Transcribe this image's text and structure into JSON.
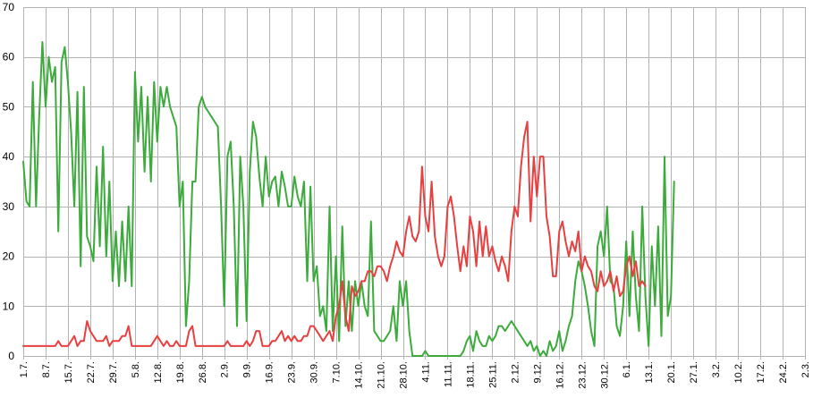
{
  "chart_data": {
    "type": "line",
    "ylim": [
      0,
      70
    ],
    "y_ticks": [
      0,
      10,
      20,
      30,
      40,
      50,
      60,
      70
    ],
    "grid": "both",
    "legend": "none",
    "x_tick_labels": [
      "1.7.",
      "8.7.",
      "15.7.",
      "22.7.",
      "29.7.",
      "5.8.",
      "12.8.",
      "19.8.",
      "26.8.",
      "2.9.",
      "9.9.",
      "16.9.",
      "23.9.",
      "30.9.",
      "7.10.",
      "14.10.",
      "21.10.",
      "28.10.",
      "4.11.",
      "11.11.",
      "18.11.",
      "25.11.",
      "2.12.",
      "9.12.",
      "16.12.",
      "23.12.",
      "30.12.",
      "6.1.",
      "13.1.",
      "20.1.",
      "27.1.",
      "3.2.",
      "10.2.",
      "17.2.",
      "24.2.",
      "2.3."
    ],
    "days_per_tick": 7,
    "series": [
      {
        "color": "#3cab3c",
        "values": [
          39,
          31,
          30,
          55,
          30,
          48,
          63,
          50,
          60,
          55,
          58,
          25,
          59,
          62,
          55,
          45,
          30,
          53,
          18,
          54,
          24,
          22,
          19,
          38,
          22,
          42,
          20,
          35,
          15,
          25,
          14,
          27,
          15,
          30,
          14,
          57,
          43,
          54,
          37,
          52,
          35,
          55,
          43,
          54,
          50,
          54,
          50,
          48,
          46,
          30,
          35,
          6,
          15,
          35,
          35,
          50,
          52,
          50,
          49,
          48,
          47,
          46,
          30,
          10,
          40,
          43,
          30,
          6,
          40,
          30,
          7,
          37,
          47,
          44,
          36,
          30,
          40,
          32,
          35,
          36,
          30,
          37,
          34,
          30,
          30,
          36,
          32,
          30,
          35,
          15,
          34,
          15,
          18,
          8,
          10,
          5,
          30,
          5,
          20,
          3,
          26,
          6,
          15,
          5,
          15,
          10,
          15,
          10,
          8,
          27,
          5,
          4,
          3,
          3,
          4,
          5,
          10,
          3,
          15,
          10,
          15,
          5,
          0,
          0,
          0,
          0,
          1,
          0,
          0,
          0,
          0,
          0,
          0,
          0,
          0,
          0,
          0,
          0,
          1,
          3,
          4,
          1,
          5,
          3,
          2,
          2,
          4,
          3,
          4,
          6,
          6,
          5,
          6,
          7,
          6,
          5,
          4,
          3,
          2,
          3,
          1,
          2,
          0,
          1,
          0,
          3,
          1,
          2,
          5,
          1,
          3,
          6,
          8,
          15,
          19,
          17,
          14,
          10,
          5,
          2,
          22,
          25,
          20,
          30,
          15,
          14,
          6,
          4,
          10,
          23,
          8,
          25,
          12,
          5,
          30,
          12,
          2,
          22,
          10,
          26,
          4,
          40,
          8,
          12,
          35
        ]
      },
      {
        "color": "#e84040",
        "values": [
          2,
          2,
          2,
          2,
          2,
          2,
          2,
          2,
          2,
          2,
          2,
          3,
          2,
          2,
          2,
          3,
          4,
          2,
          3,
          3,
          7,
          5,
          4,
          3,
          3,
          3,
          4,
          2,
          3,
          3,
          3,
          4,
          4,
          6,
          2,
          2,
          2,
          2,
          2,
          2,
          2,
          3,
          4,
          3,
          2,
          3,
          2,
          2,
          3,
          2,
          2,
          2,
          5,
          6,
          2,
          2,
          2,
          2,
          2,
          2,
          2,
          2,
          2,
          2,
          3,
          2,
          2,
          2,
          2,
          2,
          3,
          2,
          3,
          5,
          5,
          2,
          2,
          2,
          3,
          3,
          4,
          5,
          3,
          4,
          3,
          4,
          3,
          3,
          4,
          4,
          6,
          6,
          5,
          4,
          3,
          4,
          5,
          3,
          8,
          10,
          15,
          8,
          5,
          14,
          12,
          13,
          15,
          15,
          17,
          17,
          16,
          18,
          18,
          17,
          15,
          18,
          20,
          23,
          21,
          20,
          25,
          28,
          24,
          23,
          25,
          38,
          28,
          25,
          35,
          24,
          20,
          18,
          20,
          30,
          32,
          28,
          22,
          17,
          22,
          18,
          28,
          25,
          18,
          27,
          20,
          26,
          20,
          22,
          19,
          17,
          20,
          18,
          15,
          25,
          30,
          28,
          38,
          44,
          47,
          27,
          40,
          32,
          40,
          40,
          28,
          24,
          16,
          16,
          25,
          27,
          23,
          20,
          23,
          21,
          25,
          17,
          20,
          18,
          17,
          14,
          13,
          17,
          14,
          15,
          17,
          13,
          16,
          12,
          13,
          18,
          20,
          16,
          19,
          14,
          15,
          14
        ]
      }
    ]
  }
}
